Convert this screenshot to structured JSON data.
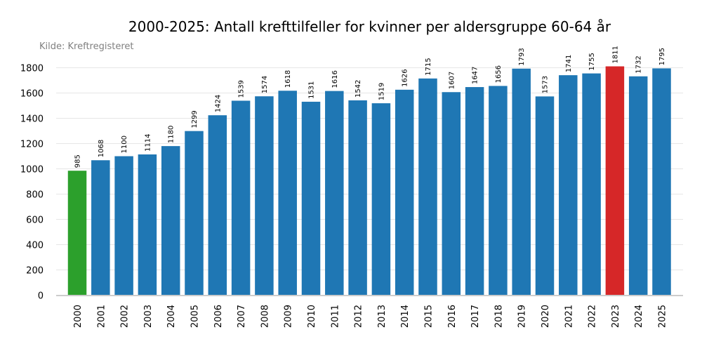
{
  "chart_data": {
    "type": "bar",
    "title": "2000-2025: Antall krefttilfeller for kvinner per aldersgruppe 60-64 år",
    "source": "Kilde: Kreftregisteret",
    "xlabel": "",
    "ylabel": "",
    "ylim": [
      0,
      1800
    ],
    "yticks": [
      0,
      200,
      400,
      600,
      800,
      1000,
      1200,
      1400,
      1600,
      1800
    ],
    "grid": true,
    "categories": [
      "2000",
      "2001",
      "2002",
      "2003",
      "2004",
      "2005",
      "2006",
      "2007",
      "2008",
      "2009",
      "2010",
      "2011",
      "2012",
      "2013",
      "2014",
      "2015",
      "2016",
      "2017",
      "2018",
      "2019",
      "2020",
      "2021",
      "2022",
      "2023",
      "2024",
      "2025"
    ],
    "values": [
      985,
      1068,
      1100,
      1114,
      1180,
      1299,
      1424,
      1539,
      1574,
      1618,
      1531,
      1616,
      1542,
      1519,
      1626,
      1715,
      1607,
      1647,
      1656,
      1793,
      1573,
      1741,
      1755,
      1811,
      1732,
      1795
    ],
    "colors": {
      "default": "#1f77b4",
      "first": "#2ca02c",
      "max": "#d62728"
    }
  }
}
